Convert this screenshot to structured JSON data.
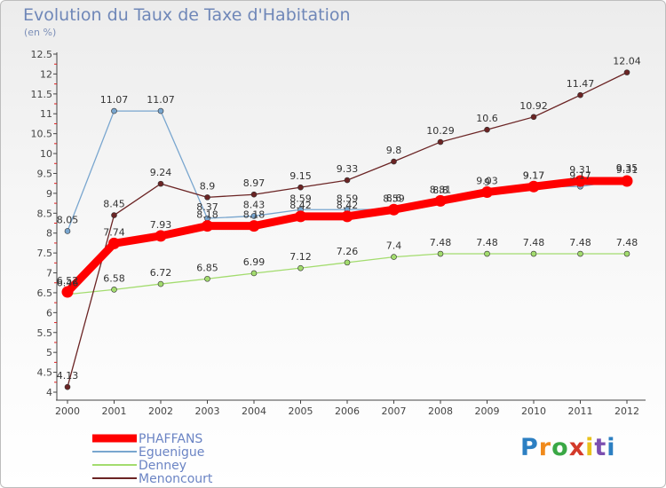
{
  "header": {
    "title": "Evolution du Taux de Taxe d'Habitation",
    "unit": "(en %)"
  },
  "brand": {
    "letters": [
      "P",
      "r",
      "o",
      "x",
      "i",
      "t",
      "i"
    ]
  },
  "chart_data": {
    "type": "line",
    "x": [
      "2000",
      "2001",
      "2002",
      "2003",
      "2004",
      "2005",
      "2006",
      "2007",
      "2008",
      "2009",
      "2010",
      "2011",
      "2012"
    ],
    "ylim": [
      4,
      12.5
    ],
    "yticks": [
      "4",
      "4.5",
      "5",
      "5.5",
      "6",
      "6.5",
      "7",
      "7.5",
      "8",
      "8.5",
      "9",
      "9.5",
      "10",
      "10.5",
      "11",
      "11.5",
      "12",
      "12.5"
    ],
    "grid": false,
    "legend_position": "bottom-left",
    "series": [
      {
        "name": "PHAFFANS",
        "color": "#ff0000",
        "emphasis": true,
        "values": [
          6.52,
          7.74,
          7.93,
          8.18,
          8.18,
          8.42,
          8.42,
          8.59,
          8.81,
          9.03,
          9.17,
          9.31,
          9.31
        ]
      },
      {
        "name": "Eguenigue",
        "color": "#79a6cf",
        "values": [
          8.05,
          11.07,
          11.07,
          8.37,
          8.43,
          8.59,
          8.59,
          8.6,
          8.8,
          9.0,
          9.17,
          9.17,
          9.35
        ]
      },
      {
        "name": "Denney",
        "color": "#a3dc6e",
        "values": [
          6.46,
          6.58,
          6.72,
          6.85,
          6.99,
          7.12,
          7.26,
          7.4,
          7.48,
          7.48,
          7.48,
          7.48,
          7.48
        ]
      },
      {
        "name": "Menoncourt",
        "color": "#6b2424",
        "values": [
          4.13,
          8.45,
          9.24,
          8.9,
          8.97,
          9.15,
          9.33,
          9.8,
          10.29,
          10.6,
          10.92,
          11.47,
          12.04
        ]
      }
    ]
  }
}
